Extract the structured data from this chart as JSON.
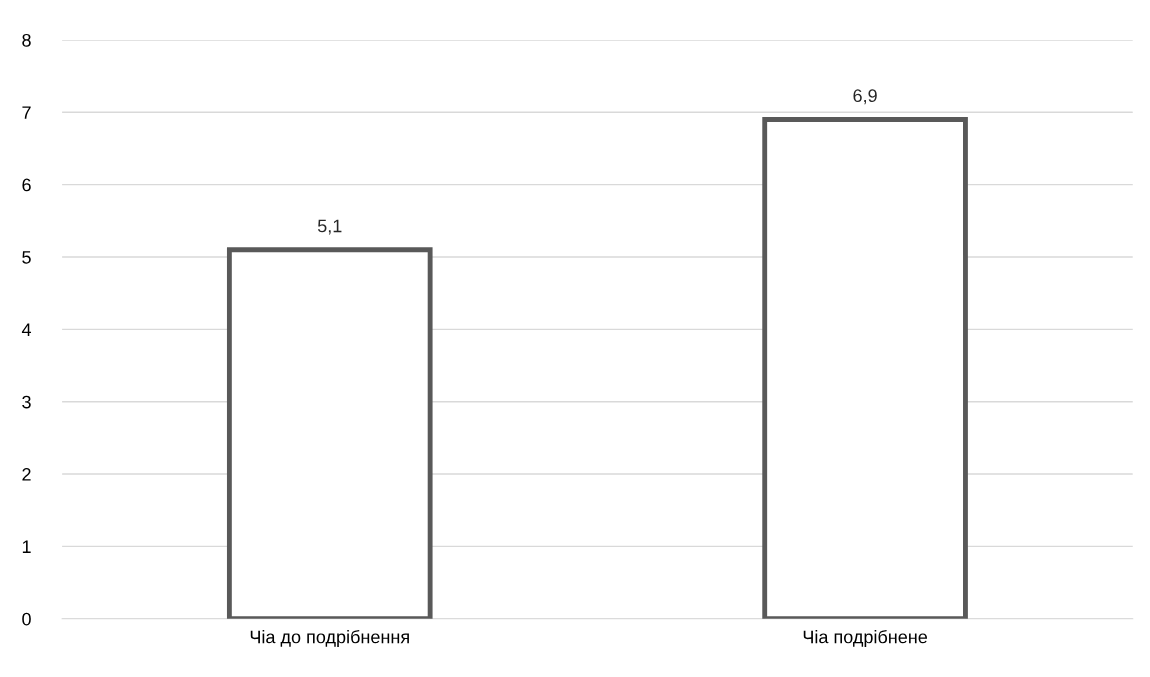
{
  "chart_data": {
    "type": "bar",
    "categories": [
      "Чіа до подрібнення",
      "Чіа подрібнене"
    ],
    "values": [
      5.1,
      6.9
    ],
    "value_labels": [
      "5,1",
      "6,9"
    ],
    "color": "#595959",
    "ylim": [
      0,
      8
    ],
    "yticks": [
      0,
      1,
      2,
      3,
      4,
      5,
      6,
      7,
      8
    ],
    "grid": "y"
  }
}
